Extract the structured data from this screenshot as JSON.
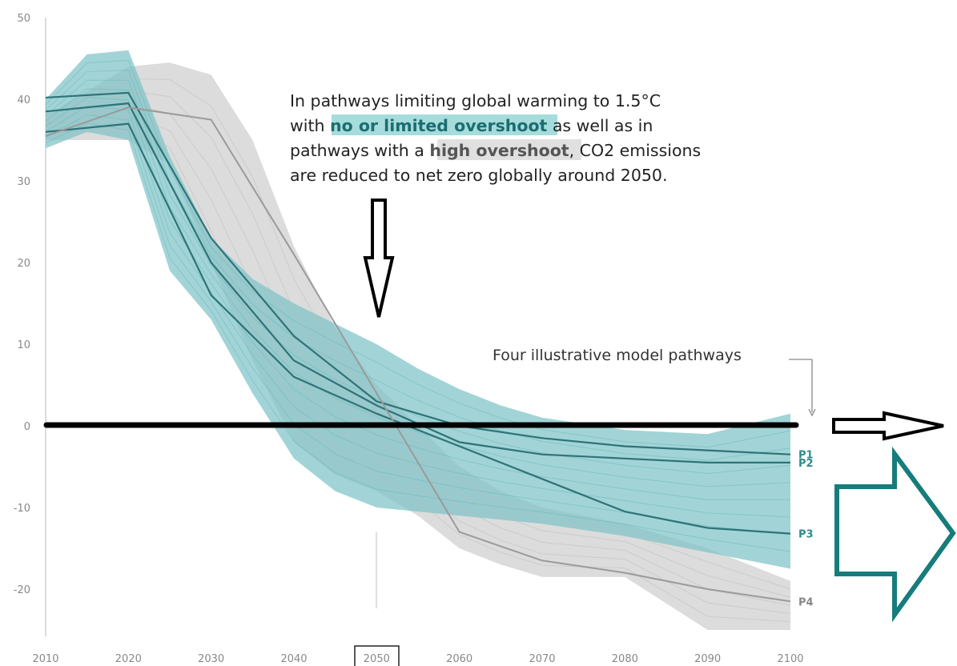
{
  "chart_data": {
    "type": "line",
    "title": "",
    "xlabel": "",
    "ylabel": "",
    "xlim": [
      2010,
      2100
    ],
    "ylim": [
      -25,
      50
    ],
    "x_ticks": [
      "2010",
      "2020",
      "2030",
      "2040",
      "2050",
      "2060",
      "2070",
      "2080",
      "2090",
      "2100"
    ],
    "y_ticks": [
      "50",
      "40",
      "30",
      "20",
      "10",
      "0",
      "-10",
      "-20"
    ],
    "highlighted_x_tick": "2050",
    "grid": false,
    "annotation": {
      "line1": "In pathways limiting global warming to 1.5°C",
      "line2_prefix": "with ",
      "line2_highlight": "no or limited overshoot",
      "line2_suffix": " as well as in",
      "line3_prefix": "pathways with a ",
      "line3_highlight": "high overshoot",
      "line3_suffix": ", CO2 emissions",
      "line4": "are reduced to net zero globally around 2050."
    },
    "pathways_note": "Four illustrative model pathways",
    "colors": {
      "no_or_limited_overshoot": "#7ec4c8",
      "high_overshoot": "#d0d0d0",
      "pathway_line": "#2e7377",
      "p4_line": "#9a9a9a",
      "zero_line": "#000000",
      "big_arrow": "#167c7c"
    },
    "bands": [
      {
        "name": "no or limited overshoot",
        "x": [
          2010,
          2015,
          2020,
          2025,
          2030,
          2035,
          2040,
          2045,
          2050,
          2055,
          2060,
          2065,
          2070,
          2080,
          2090,
          2100
        ],
        "upper": [
          40,
          45.5,
          46,
          33,
          23,
          18,
          15,
          12.5,
          10,
          7,
          4.5,
          2.5,
          1,
          -0.5,
          -1,
          1.5
        ],
        "lower": [
          34,
          36,
          35,
          19,
          13,
          4,
          -4,
          -8,
          -10,
          -10.5,
          -11,
          -11.5,
          -12,
          -13.5,
          -15.5,
          -17.5
        ]
      },
      {
        "name": "high overshoot",
        "x": [
          2010,
          2020,
          2025,
          2030,
          2035,
          2040,
          2045,
          2050,
          2055,
          2060,
          2065,
          2070,
          2080,
          2090,
          2100
        ],
        "upper": [
          38,
          44,
          44.5,
          43,
          35,
          22,
          12,
          5,
          0,
          -5,
          -8,
          -10,
          -12,
          -15,
          -19
        ],
        "lower": [
          35,
          35,
          32,
          20,
          8,
          -2,
          -6,
          -8,
          -11,
          -15,
          -17,
          -18.5,
          -18.5,
          -25,
          -25
        ]
      }
    ],
    "series": [
      {
        "name": "P1",
        "x": [
          2010,
          2020,
          2030,
          2040,
          2050,
          2060,
          2070,
          2080,
          2090,
          2100
        ],
        "values": [
          40.2,
          40.8,
          23,
          11,
          3,
          0,
          -1.5,
          -2.5,
          -3,
          -3.5
        ]
      },
      {
        "name": "P2",
        "x": [
          2010,
          2020,
          2030,
          2040,
          2050,
          2060,
          2070,
          2080,
          2090,
          2100
        ],
        "values": [
          38.5,
          39.5,
          20,
          8,
          2.5,
          -2,
          -3.5,
          -4,
          -4.5,
          -4.5
        ]
      },
      {
        "name": "P3",
        "x": [
          2010,
          2020,
          2030,
          2040,
          2050,
          2060,
          2070,
          2080,
          2090,
          2100
        ],
        "values": [
          36,
          37,
          16,
          6,
          1.5,
          -2.5,
          -6.5,
          -10.5,
          -12.5,
          -13.2
        ]
      },
      {
        "name": "P4",
        "x": [
          2010,
          2020,
          2030,
          2040,
          2050,
          2060,
          2070,
          2080,
          2090,
          2100
        ],
        "values": [
          35.5,
          39,
          37.5,
          21,
          4,
          -13,
          -16.5,
          -18,
          -20,
          -21.5
        ]
      }
    ]
  }
}
